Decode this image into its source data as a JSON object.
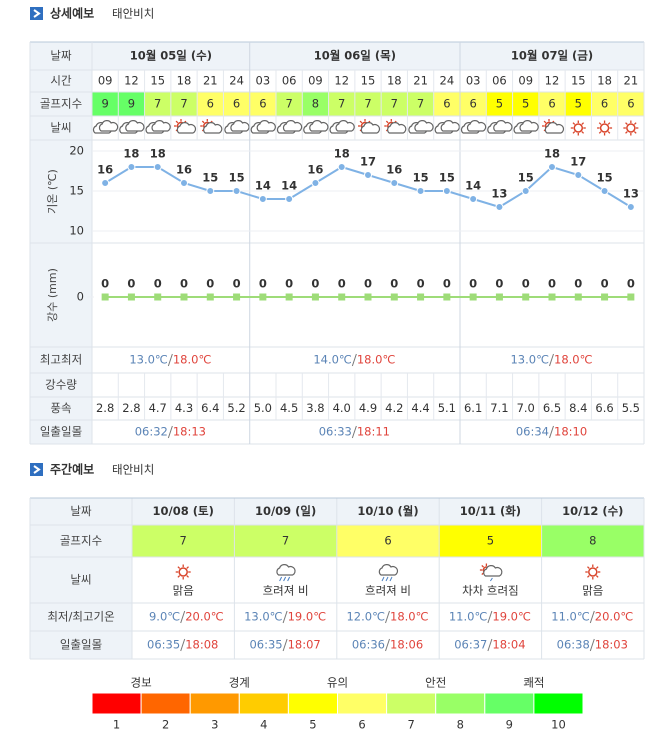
{
  "detail": {
    "title": "상세예보",
    "location": "태안비치",
    "labels": [
      "날짜",
      "시간",
      "골프지수",
      "날씨",
      "최고최저",
      "강수량",
      "풍속",
      "일출일몰"
    ],
    "days": [
      {
        "date": "10월 05일 (수)",
        "times": [
          "09",
          "12",
          "15",
          "18",
          "21",
          "24"
        ],
        "min": "13.0℃",
        "max": "18.0℃",
        "sunrise": "06:32",
        "sunset": "18:13"
      },
      {
        "date": "10월 06일 (목)",
        "times": [
          "03",
          "06",
          "09",
          "12",
          "15",
          "18",
          "21",
          "24"
        ],
        "min": "14.0℃",
        "max": "18.0℃",
        "sunrise": "06:33",
        "sunset": "18:11"
      },
      {
        "date": "10월 07일 (금)",
        "times": [
          "03",
          "06",
          "09",
          "12",
          "15",
          "18",
          "21"
        ],
        "min": "13.0℃",
        "max": "18.0℃",
        "sunrise": "06:34",
        "sunset": "18:10"
      }
    ],
    "golf_index": [
      9,
      9,
      7,
      7,
      6,
      6,
      6,
      7,
      8,
      7,
      7,
      7,
      7,
      6,
      6,
      5,
      5,
      6,
      5,
      6,
      6
    ],
    "wind": [
      "2.8",
      "2.8",
      "4.7",
      "4.3",
      "6.4",
      "5.2",
      "5.0",
      "4.5",
      "3.8",
      "4.0",
      "4.9",
      "4.2",
      "4.4",
      "5.1",
      "6.1",
      "7.1",
      "7.0",
      "6.5",
      "8.4",
      "6.6",
      "5.5"
    ]
  },
  "chart_data": [
    {
      "type": "line",
      "y_label": "기온 (℃)",
      "values": [
        16,
        18,
        18,
        16,
        15,
        15,
        14,
        14,
        16,
        18,
        17,
        16,
        15,
        15,
        14,
        13,
        15,
        18,
        17,
        15,
        13
      ],
      "color": "#7fb2e5",
      "marker": "circle",
      "ylim": [
        9,
        21
      ],
      "yticks": [
        10,
        15,
        20
      ],
      "grid": true
    },
    {
      "type": "line",
      "y_label": "강수 (mm)",
      "values": [
        0,
        0,
        0,
        0,
        0,
        0,
        0,
        0,
        0,
        0,
        0,
        0,
        0,
        0,
        0,
        0,
        0,
        0,
        0,
        0,
        0
      ],
      "color": "#9edc78",
      "marker": "square",
      "ylim": [
        -1,
        1
      ],
      "yticks": [
        0
      ],
      "grid": false
    }
  ],
  "weekly": {
    "title": "주간예보",
    "location": "태안비치",
    "labels": [
      "날짜",
      "골프지수",
      "날씨",
      "최저/최고기온",
      "일출일몰"
    ],
    "days": [
      {
        "date": "10/08 (토)",
        "golf_index": 7,
        "weather": "맑음",
        "min": "9.0℃",
        "max": "20.0℃",
        "sunrise": "06:35",
        "sunset": "18:08"
      },
      {
        "date": "10/09 (일)",
        "golf_index": 7,
        "weather": "흐려져 비",
        "min": "13.0℃",
        "max": "19.0℃",
        "sunrise": "06:35",
        "sunset": "18:07"
      },
      {
        "date": "10/10 (월)",
        "golf_index": 6,
        "weather": "흐려져 비",
        "min": "12.0℃",
        "max": "18.0℃",
        "sunrise": "06:36",
        "sunset": "18:06"
      },
      {
        "date": "10/11 (화)",
        "golf_index": 5,
        "weather": "차차 흐려짐",
        "min": "11.0℃",
        "max": "19.0℃",
        "sunrise": "06:37",
        "sunset": "18:04"
      },
      {
        "date": "10/12 (수)",
        "golf_index": 8,
        "weather": "맑음",
        "min": "11.0℃",
        "max": "20.0℃",
        "sunrise": "06:38",
        "sunset": "18:03"
      }
    ]
  },
  "legend": {
    "groups": [
      "경보",
      "경계",
      "유의",
      "안전",
      "쾌적"
    ],
    "levels": [
      1,
      2,
      3,
      4,
      5,
      6,
      7,
      8,
      9,
      10
    ],
    "colors": [
      "#ff0000",
      "#ff6600",
      "#ff9900",
      "#ffcc00",
      "#ffff00",
      "#ffff66",
      "#ccff66",
      "#99ff66",
      "#66ff66",
      "#00ff00"
    ]
  }
}
